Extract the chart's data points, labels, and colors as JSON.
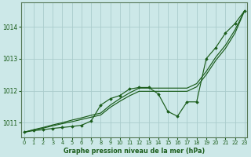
{
  "background_color": "#cce8e8",
  "grid_color": "#aacccc",
  "line_color": "#1a5c1a",
  "marker_color": "#1a5c1a",
  "title": "Graphe pression niveau de la mer (hPa)",
  "ylim": [
    1010.55,
    1014.75
  ],
  "yticks": [
    1011,
    1012,
    1013,
    1014
  ],
  "xticks": [
    0,
    1,
    2,
    3,
    4,
    5,
    6,
    7,
    8,
    9,
    10,
    11,
    12,
    13,
    14,
    15,
    16,
    17,
    18,
    19,
    20,
    21,
    22,
    23
  ],
  "series_marker": [
    1010.7,
    1010.75,
    1010.78,
    1010.82,
    1010.85,
    1010.88,
    1010.92,
    1011.05,
    1011.55,
    1011.75,
    1011.85,
    1012.05,
    1012.1,
    1012.1,
    1011.9,
    1011.35,
    1011.2,
    1011.65,
    1011.65,
    1013.0,
    1013.35,
    1013.8,
    1014.1,
    1014.5
  ],
  "series_line1": [
    1010.7,
    1010.78,
    1010.85,
    1010.93,
    1011.0,
    1011.08,
    1011.15,
    1011.23,
    1011.3,
    1011.55,
    1011.75,
    1011.93,
    1012.08,
    1012.08,
    1012.08,
    1012.08,
    1012.08,
    1012.08,
    1012.22,
    1012.6,
    1013.05,
    1013.42,
    1013.9,
    1014.5
  ],
  "series_line2": [
    1010.7,
    1010.77,
    1010.83,
    1010.9,
    1010.97,
    1011.03,
    1011.1,
    1011.17,
    1011.24,
    1011.48,
    1011.67,
    1011.84,
    1011.98,
    1011.98,
    1011.98,
    1011.98,
    1011.98,
    1011.98,
    1012.12,
    1012.5,
    1012.95,
    1013.32,
    1013.8,
    1014.5
  ]
}
